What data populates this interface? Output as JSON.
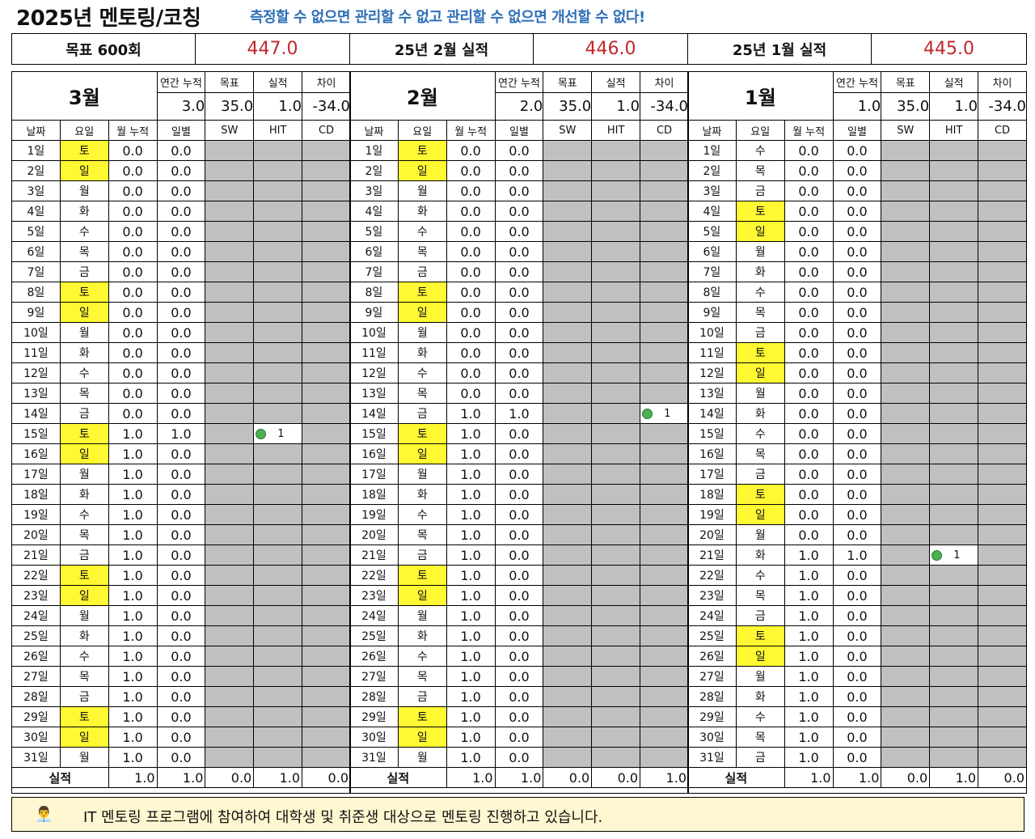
{
  "title": "2025년 멘토링/코칭",
  "slogan": "측정할 수 없으면 관리할 수 없고 관리할 수 없으면 개선할 수 없다!",
  "summary": [
    {
      "label": "목표 600회",
      "value": "447.0"
    },
    {
      "label": "25년 2월 실적",
      "value": "446.0"
    },
    {
      "label": "25년 1월 실적",
      "value": "445.0"
    }
  ],
  "header_labels": {
    "annual": "연간 누적",
    "target": "목표",
    "actual": "실적",
    "diff": "차이"
  },
  "col_labels": {
    "date": "날짜",
    "weekday": "요일",
    "mcum": "월 누적",
    "daily": "일별",
    "sw": "SW",
    "hit": "HIT",
    "cd": "CD"
  },
  "total_label": "실적",
  "months": [
    {
      "name": "3월",
      "annual": "3.0",
      "target": "35.0",
      "actual": "1.0",
      "diff": "-34.0",
      "dot": {
        "row": 15,
        "col": "hit",
        "value": "1"
      },
      "rows": [
        [
          "1일",
          "토",
          "0.0",
          "0.0"
        ],
        [
          "2일",
          "일",
          "0.0",
          "0.0"
        ],
        [
          "3일",
          "월",
          "0.0",
          "0.0"
        ],
        [
          "4일",
          "화",
          "0.0",
          "0.0"
        ],
        [
          "5일",
          "수",
          "0.0",
          "0.0"
        ],
        [
          "6일",
          "목",
          "0.0",
          "0.0"
        ],
        [
          "7일",
          "금",
          "0.0",
          "0.0"
        ],
        [
          "8일",
          "토",
          "0.0",
          "0.0"
        ],
        [
          "9일",
          "일",
          "0.0",
          "0.0"
        ],
        [
          "10일",
          "월",
          "0.0",
          "0.0"
        ],
        [
          "11일",
          "화",
          "0.0",
          "0.0"
        ],
        [
          "12일",
          "수",
          "0.0",
          "0.0"
        ],
        [
          "13일",
          "목",
          "0.0",
          "0.0"
        ],
        [
          "14일",
          "금",
          "0.0",
          "0.0"
        ],
        [
          "15일",
          "토",
          "1.0",
          "1.0"
        ],
        [
          "16일",
          "일",
          "1.0",
          "0.0"
        ],
        [
          "17일",
          "월",
          "1.0",
          "0.0"
        ],
        [
          "18일",
          "화",
          "1.0",
          "0.0"
        ],
        [
          "19일",
          "수",
          "1.0",
          "0.0"
        ],
        [
          "20일",
          "목",
          "1.0",
          "0.0"
        ],
        [
          "21일",
          "금",
          "1.0",
          "0.0"
        ],
        [
          "22일",
          "토",
          "1.0",
          "0.0"
        ],
        [
          "23일",
          "일",
          "1.0",
          "0.0"
        ],
        [
          "24일",
          "월",
          "1.0",
          "0.0"
        ],
        [
          "25일",
          "화",
          "1.0",
          "0.0"
        ],
        [
          "26일",
          "수",
          "1.0",
          "0.0"
        ],
        [
          "27일",
          "목",
          "1.0",
          "0.0"
        ],
        [
          "28일",
          "금",
          "1.0",
          "0.0"
        ],
        [
          "29일",
          "토",
          "1.0",
          "0.0"
        ],
        [
          "30일",
          "일",
          "1.0",
          "0.0"
        ],
        [
          "31일",
          "월",
          "1.0",
          "0.0"
        ]
      ],
      "totals": [
        "1.0",
        "1.0",
        "0.0",
        "1.0",
        "0.0"
      ]
    },
    {
      "name": "2월",
      "annual": "2.0",
      "target": "35.0",
      "actual": "1.0",
      "diff": "-34.0",
      "dot": {
        "row": 14,
        "col": "cd",
        "value": "1"
      },
      "rows": [
        [
          "1일",
          "토",
          "0.0",
          "0.0"
        ],
        [
          "2일",
          "일",
          "0.0",
          "0.0"
        ],
        [
          "3일",
          "월",
          "0.0",
          "0.0"
        ],
        [
          "4일",
          "화",
          "0.0",
          "0.0"
        ],
        [
          "5일",
          "수",
          "0.0",
          "0.0"
        ],
        [
          "6일",
          "목",
          "0.0",
          "0.0"
        ],
        [
          "7일",
          "금",
          "0.0",
          "0.0"
        ],
        [
          "8일",
          "토",
          "0.0",
          "0.0"
        ],
        [
          "9일",
          "일",
          "0.0",
          "0.0"
        ],
        [
          "10일",
          "월",
          "0.0",
          "0.0"
        ],
        [
          "11일",
          "화",
          "0.0",
          "0.0"
        ],
        [
          "12일",
          "수",
          "0.0",
          "0.0"
        ],
        [
          "13일",
          "목",
          "0.0",
          "0.0"
        ],
        [
          "14일",
          "금",
          "1.0",
          "1.0"
        ],
        [
          "15일",
          "토",
          "1.0",
          "0.0"
        ],
        [
          "16일",
          "일",
          "1.0",
          "0.0"
        ],
        [
          "17일",
          "월",
          "1.0",
          "0.0"
        ],
        [
          "18일",
          "화",
          "1.0",
          "0.0"
        ],
        [
          "19일",
          "수",
          "1.0",
          "0.0"
        ],
        [
          "20일",
          "목",
          "1.0",
          "0.0"
        ],
        [
          "21일",
          "금",
          "1.0",
          "0.0"
        ],
        [
          "22일",
          "토",
          "1.0",
          "0.0"
        ],
        [
          "23일",
          "일",
          "1.0",
          "0.0"
        ],
        [
          "24일",
          "월",
          "1.0",
          "0.0"
        ],
        [
          "25일",
          "화",
          "1.0",
          "0.0"
        ],
        [
          "26일",
          "수",
          "1.0",
          "0.0"
        ],
        [
          "27일",
          "목",
          "1.0",
          "0.0"
        ],
        [
          "28일",
          "금",
          "1.0",
          "0.0"
        ],
        [
          "29일",
          "토",
          "1.0",
          "0.0"
        ],
        [
          "30일",
          "일",
          "1.0",
          "0.0"
        ],
        [
          "31일",
          "월",
          "1.0",
          "0.0"
        ]
      ],
      "totals": [
        "1.0",
        "1.0",
        "0.0",
        "0.0",
        "1.0"
      ]
    },
    {
      "name": "1월",
      "annual": "1.0",
      "target": "35.0",
      "actual": "1.0",
      "diff": "-34.0",
      "dot": {
        "row": 21,
        "col": "hit",
        "value": "1"
      },
      "rows": [
        [
          "1일",
          "수",
          "0.0",
          "0.0"
        ],
        [
          "2일",
          "목",
          "0.0",
          "0.0"
        ],
        [
          "3일",
          "금",
          "0.0",
          "0.0"
        ],
        [
          "4일",
          "토",
          "0.0",
          "0.0"
        ],
        [
          "5일",
          "일",
          "0.0",
          "0.0"
        ],
        [
          "6일",
          "월",
          "0.0",
          "0.0"
        ],
        [
          "7일",
          "화",
          "0.0",
          "0.0"
        ],
        [
          "8일",
          "수",
          "0.0",
          "0.0"
        ],
        [
          "9일",
          "목",
          "0.0",
          "0.0"
        ],
        [
          "10일",
          "금",
          "0.0",
          "0.0"
        ],
        [
          "11일",
          "토",
          "0.0",
          "0.0"
        ],
        [
          "12일",
          "일",
          "0.0",
          "0.0"
        ],
        [
          "13일",
          "월",
          "0.0",
          "0.0"
        ],
        [
          "14일",
          "화",
          "0.0",
          "0.0"
        ],
        [
          "15일",
          "수",
          "0.0",
          "0.0"
        ],
        [
          "16일",
          "목",
          "0.0",
          "0.0"
        ],
        [
          "17일",
          "금",
          "0.0",
          "0.0"
        ],
        [
          "18일",
          "토",
          "0.0",
          "0.0"
        ],
        [
          "19일",
          "일",
          "0.0",
          "0.0"
        ],
        [
          "20일",
          "월",
          "0.0",
          "0.0"
        ],
        [
          "21일",
          "화",
          "1.0",
          "1.0"
        ],
        [
          "22일",
          "수",
          "1.0",
          "0.0"
        ],
        [
          "23일",
          "목",
          "1.0",
          "0.0"
        ],
        [
          "24일",
          "금",
          "1.0",
          "0.0"
        ],
        [
          "25일",
          "토",
          "1.0",
          "0.0"
        ],
        [
          "26일",
          "일",
          "1.0",
          "0.0"
        ],
        [
          "27일",
          "월",
          "1.0",
          "0.0"
        ],
        [
          "28일",
          "화",
          "1.0",
          "0.0"
        ],
        [
          "29일",
          "수",
          "1.0",
          "0.0"
        ],
        [
          "30일",
          "목",
          "1.0",
          "0.0"
        ],
        [
          "31일",
          "금",
          "1.0",
          "0.0"
        ]
      ],
      "totals": [
        "1.0",
        "1.0",
        "0.0",
        "1.0",
        "0.0"
      ]
    }
  ],
  "footer": {
    "avatar_icon": "person-icon",
    "text": "IT 멘토링 프로그램에 참여하여 대학생 및 취준생 대상으로 멘토링 진행하고 있습니다."
  },
  "colors": {
    "weekend": "#fff833",
    "gray": "#c0c0c0",
    "accent_red": "#c0282d",
    "slogan_blue": "#2e6fb8",
    "footer_bg": "#fff7d1",
    "dot_green": "#4caf50"
  }
}
